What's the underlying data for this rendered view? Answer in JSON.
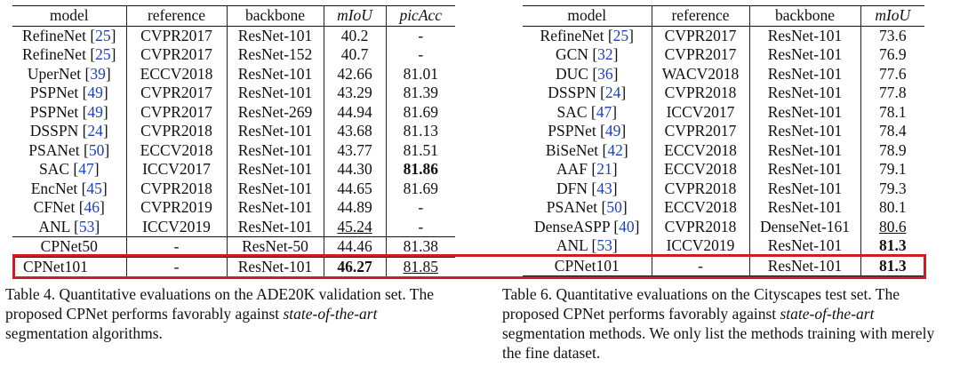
{
  "table4": {
    "headers": [
      "model",
      "reference",
      "backbone",
      "mIoU",
      "picAcc"
    ],
    "rows": [
      {
        "model": "RefineNet",
        "cite": "25",
        "reference": "CVPR2017",
        "backbone": "ResNet-101",
        "miou": "40.2",
        "picacc": "-"
      },
      {
        "model": "RefineNet",
        "cite": "25",
        "reference": "CVPR2017",
        "backbone": "ResNet-152",
        "miou": "40.7",
        "picacc": "-"
      },
      {
        "model": "UperNet",
        "cite": "39",
        "reference": "ECCV2018",
        "backbone": "ResNet-101",
        "miou": "42.66",
        "picacc": "81.01"
      },
      {
        "model": "PSPNet",
        "cite": "49",
        "reference": "CVPR2017",
        "backbone": "ResNet-101",
        "miou": "43.29",
        "picacc": "81.39"
      },
      {
        "model": "PSPNet",
        "cite": "49",
        "reference": "CVPR2017",
        "backbone": "ResNet-269",
        "miou": "44.94",
        "picacc": "81.69"
      },
      {
        "model": "DSSPN",
        "cite": "24",
        "reference": "CVPR2018",
        "backbone": "ResNet-101",
        "miou": "43.68",
        "picacc": "81.13"
      },
      {
        "model": "PSANet",
        "cite": "50",
        "reference": "ECCV2018",
        "backbone": "ResNet-101",
        "miou": "43.77",
        "picacc": "81.51"
      },
      {
        "model": "SAC",
        "cite": "47",
        "reference": "ICCV2017",
        "backbone": "ResNet-101",
        "miou": "44.30",
        "picacc": "81.86"
      },
      {
        "model": "EncNet",
        "cite": "45",
        "reference": "CVPR2018",
        "backbone": "ResNet-101",
        "miou": "44.65",
        "picacc": "81.69"
      },
      {
        "model": "CFNet",
        "cite": "46",
        "reference": "CVPR2019",
        "backbone": "ResNet-101",
        "miou": "44.89",
        "picacc": "-"
      },
      {
        "model": "ANL",
        "cite": "53",
        "reference": "ICCV2019",
        "backbone": "ResNet-101",
        "miou": "45.24",
        "picacc": "-"
      },
      {
        "model": "CPNet50",
        "cite": "",
        "reference": "-",
        "backbone": "ResNet-50",
        "miou": "44.46",
        "picacc": "81.38"
      },
      {
        "model": "CPNet101",
        "cite": "",
        "reference": "-",
        "backbone": "ResNet-101",
        "miou": "46.27",
        "picacc": "81.85"
      }
    ],
    "caption_prefix": "Table 4. Quantitative evaluations on the ADE20K validation set. The proposed CPNet performs favorably against ",
    "caption_italic": "state-of-the-art",
    "caption_suffix": " segmentation algorithms."
  },
  "table6": {
    "headers": [
      "model",
      "reference",
      "backbone",
      "mIoU"
    ],
    "rows": [
      {
        "model": "RefineNet",
        "cite": "25",
        "reference": "CVPR2017",
        "backbone": "ResNet-101",
        "miou": "73.6"
      },
      {
        "model": "GCN",
        "cite": "32",
        "reference": "CVPR2017",
        "backbone": "ResNet-101",
        "miou": "76.9"
      },
      {
        "model": "DUC",
        "cite": "36",
        "reference": "WACV2018",
        "backbone": "ResNet-101",
        "miou": "77.6"
      },
      {
        "model": "DSSPN",
        "cite": "24",
        "reference": "CVPR2018",
        "backbone": "ResNet-101",
        "miou": "77.8"
      },
      {
        "model": "SAC",
        "cite": "47",
        "reference": "ICCV2017",
        "backbone": "ResNet-101",
        "miou": "78.1"
      },
      {
        "model": "PSPNet",
        "cite": "49",
        "reference": "CVPR2017",
        "backbone": "ResNet-101",
        "miou": "78.4"
      },
      {
        "model": "BiSeNet",
        "cite": "42",
        "reference": "ECCV2018",
        "backbone": "ResNet-101",
        "miou": "78.9"
      },
      {
        "model": "AAF",
        "cite": "21",
        "reference": "ECCV2018",
        "backbone": "ResNet-101",
        "miou": "79.1"
      },
      {
        "model": "DFN",
        "cite": "43",
        "reference": "CVPR2018",
        "backbone": "ResNet-101",
        "miou": "79.3"
      },
      {
        "model": "PSANet",
        "cite": "50",
        "reference": "ECCV2018",
        "backbone": "ResNet-101",
        "miou": "80.1"
      },
      {
        "model": "DenseASPP",
        "cite": "40",
        "reference": "CVPR2018",
        "backbone": "DenseNet-161",
        "miou": "80.6"
      },
      {
        "model": "ANL",
        "cite": "53",
        "reference": "ICCV2019",
        "backbone": "ResNet-101",
        "miou": "81.3"
      },
      {
        "model": "CPNet101",
        "cite": "",
        "reference": "-",
        "backbone": "ResNet-101",
        "miou": "81.3"
      }
    ],
    "caption_prefix": "Table 6.  Quantitative evaluations on the Cityscapes test set. The proposed CPNet performs favorably against ",
    "caption_italic": "state-of-the-art",
    "caption_suffix": " segmentation methods. We only list the methods training with merely the fine dataset."
  }
}
